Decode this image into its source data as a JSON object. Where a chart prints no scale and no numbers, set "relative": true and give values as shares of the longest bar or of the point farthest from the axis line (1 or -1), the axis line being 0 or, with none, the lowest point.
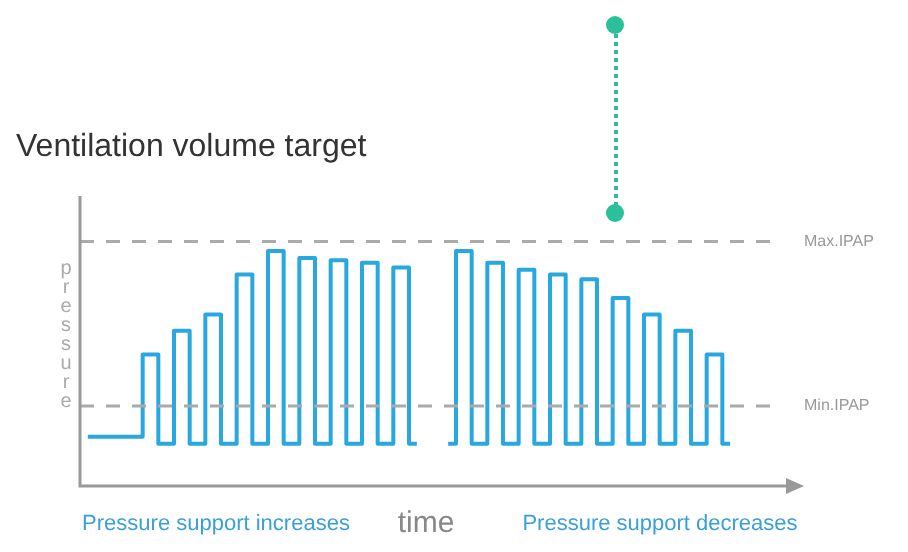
{
  "chart_data": {
    "type": "step",
    "title": "Ventilation volume target",
    "xlabel": "time",
    "ylabel": "pressure",
    "relative": true,
    "categories": [
      null,
      null,
      null,
      null,
      null,
      null,
      null,
      null,
      null,
      null,
      null,
      null,
      null,
      null,
      null,
      null,
      null,
      null,
      null,
      null,
      null,
      null,
      null,
      null,
      null,
      null,
      null,
      null,
      null,
      null,
      null,
      null,
      null,
      null,
      null,
      null,
      null,
      null,
      null,
      null,
      null,
      null
    ],
    "series": [
      {
        "color": "#29a8e0",
        "values": [
          0.21,
          0.21,
          0.21,
          0.21,
          0.56,
          0.18,
          0.66,
          0.18,
          0.73,
          0.18,
          0.9,
          0.18,
          1,
          0.18,
          0.97,
          0.18,
          0.96,
          0.18,
          0.95,
          0.18,
          0.93,
          0.18,
          null,
          null,
          null,
          null,
          null,
          null,
          null,
          null,
          null,
          null,
          null,
          null,
          null,
          null,
          null,
          null,
          null,
          null,
          null,
          null
        ]
      },
      {
        "color": "#29a8e0",
        "values": [
          null,
          null,
          null,
          null,
          null,
          null,
          null,
          null,
          null,
          null,
          null,
          null,
          null,
          null,
          null,
          null,
          null,
          null,
          null,
          null,
          null,
          null,
          null,
          0.18,
          1,
          0.18,
          0.95,
          0.18,
          0.92,
          0.18,
          0.9,
          0.18,
          0.88,
          0.18,
          0.8,
          0.18,
          0.73,
          0.18,
          0.66,
          0.18,
          0.56,
          0.18
        ]
      }
    ],
    "ref_lines": [
      {
        "axis": "y",
        "value": 1.04,
        "label": "Max.IPAP",
        "color": "#aaaaaa",
        "line_style": "dashed"
      },
      {
        "axis": "y",
        "value": 0.34,
        "label": "Min.IPAP",
        "color": "#aaaaaa",
        "line_style": "dashed"
      }
    ],
    "annotations": [
      "Pressure support increases",
      "Pressure support decreases"
    ],
    "grid": false,
    "legend": false,
    "tick_labels": false,
    "marker": "none",
    "line_style": "solid"
  }
}
